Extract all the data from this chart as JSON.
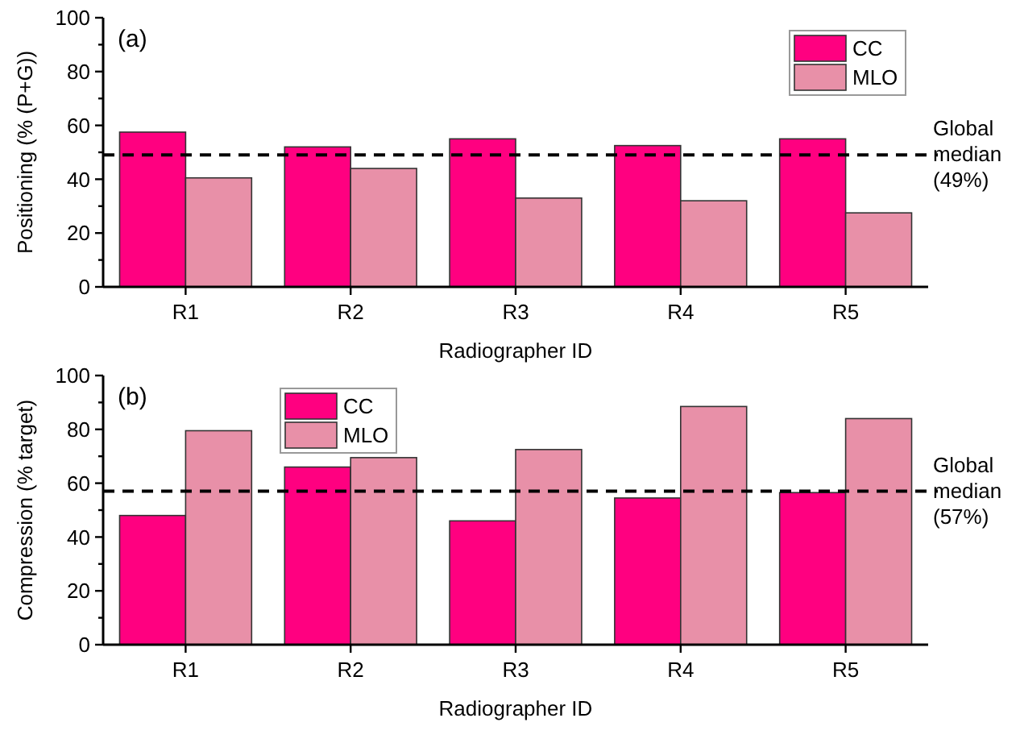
{
  "chart_data": [
    {
      "type": "bar",
      "xlabel": "Radiographer ID",
      "ylabel": "Positioning (% (P+G))",
      "categories": [
        "R1",
        "R2",
        "R3",
        "R4",
        "R5"
      ],
      "series": [
        {
          "name": "CC",
          "color": "#ff0080",
          "values": [
            57.5,
            52,
            55,
            52.5,
            55
          ]
        },
        {
          "name": "MLO",
          "color": "#e890a8",
          "values": [
            40.5,
            44,
            33,
            32,
            27.5
          ]
        }
      ],
      "ylim": [
        0,
        100
      ],
      "yticks": [
        0,
        {
          "value": 10,
          "label": null
        },
        20,
        {
          "value": 30,
          "label": null
        },
        40,
        {
          "value": 50,
          "label": null
        },
        60,
        {
          "value": 70,
          "label": null
        },
        80,
        {
          "value": 90,
          "label": null
        },
        100
      ],
      "ref_lines": [
        {
          "axis": "y",
          "value": 49,
          "label": "Global median (49%)",
          "line_style": "dashed",
          "color": "#000000"
        }
      ],
      "annotations": [
        "(a)"
      ],
      "legend": "top right",
      "grid": false
    },
    {
      "type": "bar",
      "xlabel": "Radiographer ID",
      "ylabel": "Compression (% target)",
      "categories": [
        "R1",
        "R2",
        "R3",
        "R4",
        "R5"
      ],
      "series": [
        {
          "name": "CC",
          "color": "#ff0080",
          "values": [
            48,
            66,
            46,
            54.5,
            56.5
          ]
        },
        {
          "name": "MLO",
          "color": "#e890a8",
          "values": [
            79.5,
            69.5,
            72.5,
            88.5,
            84
          ]
        }
      ],
      "ylim": [
        0,
        100
      ],
      "yticks": [
        0,
        {
          "value": 10,
          "label": null
        },
        20,
        {
          "value": 30,
          "label": null
        },
        40,
        {
          "value": 50,
          "label": null
        },
        60,
        {
          "value": 70,
          "label": null
        },
        80,
        {
          "value": 90,
          "label": null
        },
        100
      ],
      "ref_lines": [
        {
          "axis": "y",
          "value": 57,
          "label": "Global median (57%)",
          "line_style": "dashed",
          "color": "#000000"
        }
      ],
      "annotations": [
        "(b)"
      ],
      "legend": "top left",
      "grid": false
    }
  ]
}
